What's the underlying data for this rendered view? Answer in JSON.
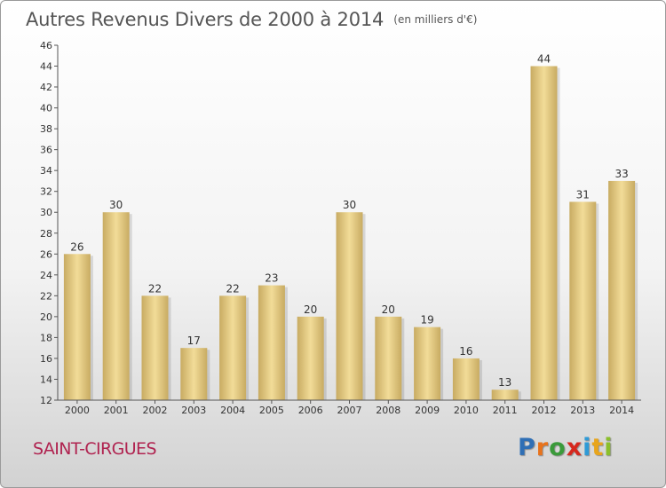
{
  "chart_data": {
    "type": "bar",
    "title": "Autres Revenus Divers de 2000 à 2014",
    "subtitle": "(en milliers d'€)",
    "categories": [
      "2000",
      "2001",
      "2002",
      "2003",
      "2004",
      "2005",
      "2006",
      "2007",
      "2008",
      "2009",
      "2010",
      "2011",
      "2012",
      "2013",
      "2014"
    ],
    "values": [
      26,
      30,
      22,
      17,
      22,
      23,
      20,
      30,
      20,
      19,
      16,
      13,
      44,
      31,
      33
    ],
    "data_labels": [
      "26",
      "30",
      "22",
      "17",
      "22",
      "23",
      "20",
      "30",
      "20",
      "19",
      "16",
      "13",
      "44",
      "31",
      "33"
    ],
    "ylim": [
      12,
      46
    ],
    "yticks": [
      12,
      14,
      16,
      18,
      20,
      22,
      24,
      26,
      28,
      30,
      32,
      34,
      36,
      38,
      40,
      42,
      44,
      46
    ],
    "xlabel": "",
    "ylabel": "",
    "grid": false,
    "legend": "none",
    "bar_color": "#e8cf86"
  },
  "footer": {
    "commune": "SAINT-CIRGUES",
    "logo_letters": [
      {
        "char": "P",
        "color": "#2f6fb5"
      },
      {
        "char": "r",
        "color": "#e8731c"
      },
      {
        "char": "o",
        "color": "#3a9a3a"
      },
      {
        "char": "x",
        "color": "#d6281e"
      },
      {
        "char": "i",
        "color": "#2f9ad6"
      },
      {
        "char": "t",
        "color": "#e8a51c"
      },
      {
        "char": "i",
        "color": "#8bbf2b"
      }
    ]
  }
}
